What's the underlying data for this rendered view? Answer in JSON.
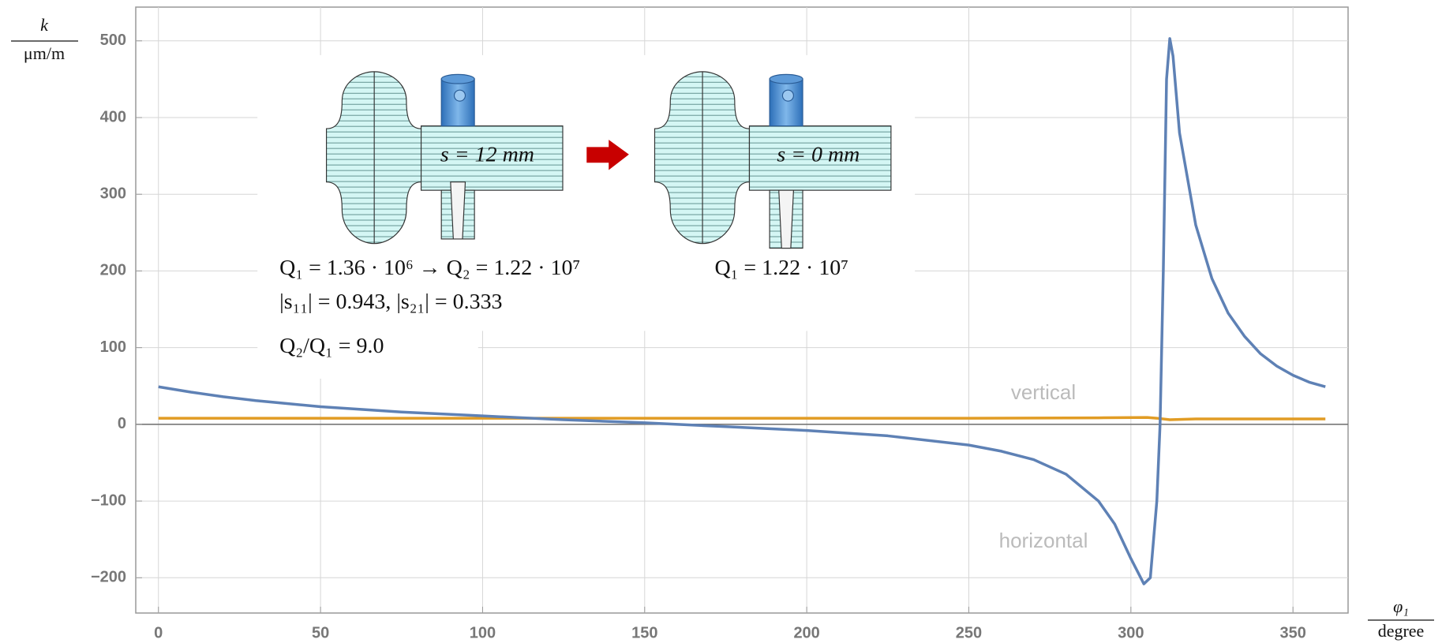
{
  "chart_data": {
    "type": "line",
    "y_label": {
      "numerator": "k",
      "denominator": "μm/m"
    },
    "x_label": {
      "numerator": "φ₁",
      "denominator": "degree"
    },
    "xlim": [
      -7,
      367
    ],
    "ylim": [
      -246,
      544
    ],
    "xticks": [
      0,
      50,
      100,
      150,
      200,
      250,
      300,
      350
    ],
    "yticks": [
      {
        "value": -200,
        "label": "−200"
      },
      {
        "value": -100,
        "label": "−100"
      },
      0,
      100,
      200,
      300,
      400,
      500
    ],
    "grid": true,
    "series": [
      {
        "name": "horizontal",
        "color": "#5e81b5",
        "x": [
          0,
          10,
          20,
          30,
          50,
          75,
          100,
          125,
          150,
          175,
          200,
          225,
          250,
          260,
          270,
          280,
          290,
          295,
          300,
          304,
          306,
          308,
          309,
          310,
          311,
          312,
          313,
          315,
          320,
          325,
          330,
          335,
          340,
          345,
          350,
          355,
          360
        ],
        "values": [
          49,
          42,
          36,
          31,
          23,
          16,
          11,
          6,
          2,
          -3,
          -8,
          -15,
          -27,
          -35,
          -46,
          -65,
          -100,
          -130,
          -175,
          -208,
          -200,
          -100,
          0,
          200,
          450,
          503,
          480,
          380,
          260,
          190,
          145,
          115,
          92,
          76,
          64,
          55,
          49
        ]
      },
      {
        "name": "vertical",
        "color": "#e19c24",
        "x": [
          0,
          50,
          100,
          150,
          200,
          250,
          290,
          305,
          308,
          312,
          320,
          360
        ],
        "values": [
          8,
          8,
          8,
          8,
          8,
          8,
          8.5,
          9,
          8,
          6,
          7,
          7
        ]
      }
    ]
  },
  "inset": {
    "left_label": "s = 12 mm",
    "right_label": "s = 0 mm",
    "lines": [
      "Q₁ = 1.36 · 10⁶ → Q₂ = 1.22 · 10⁷",
      "|s₁₁| = 0.943,  |s₂₁| = 0.333",
      "Q₂/Q₁ = 9.0"
    ],
    "right_line": "Q₁ = 1.22 · 10⁷"
  }
}
